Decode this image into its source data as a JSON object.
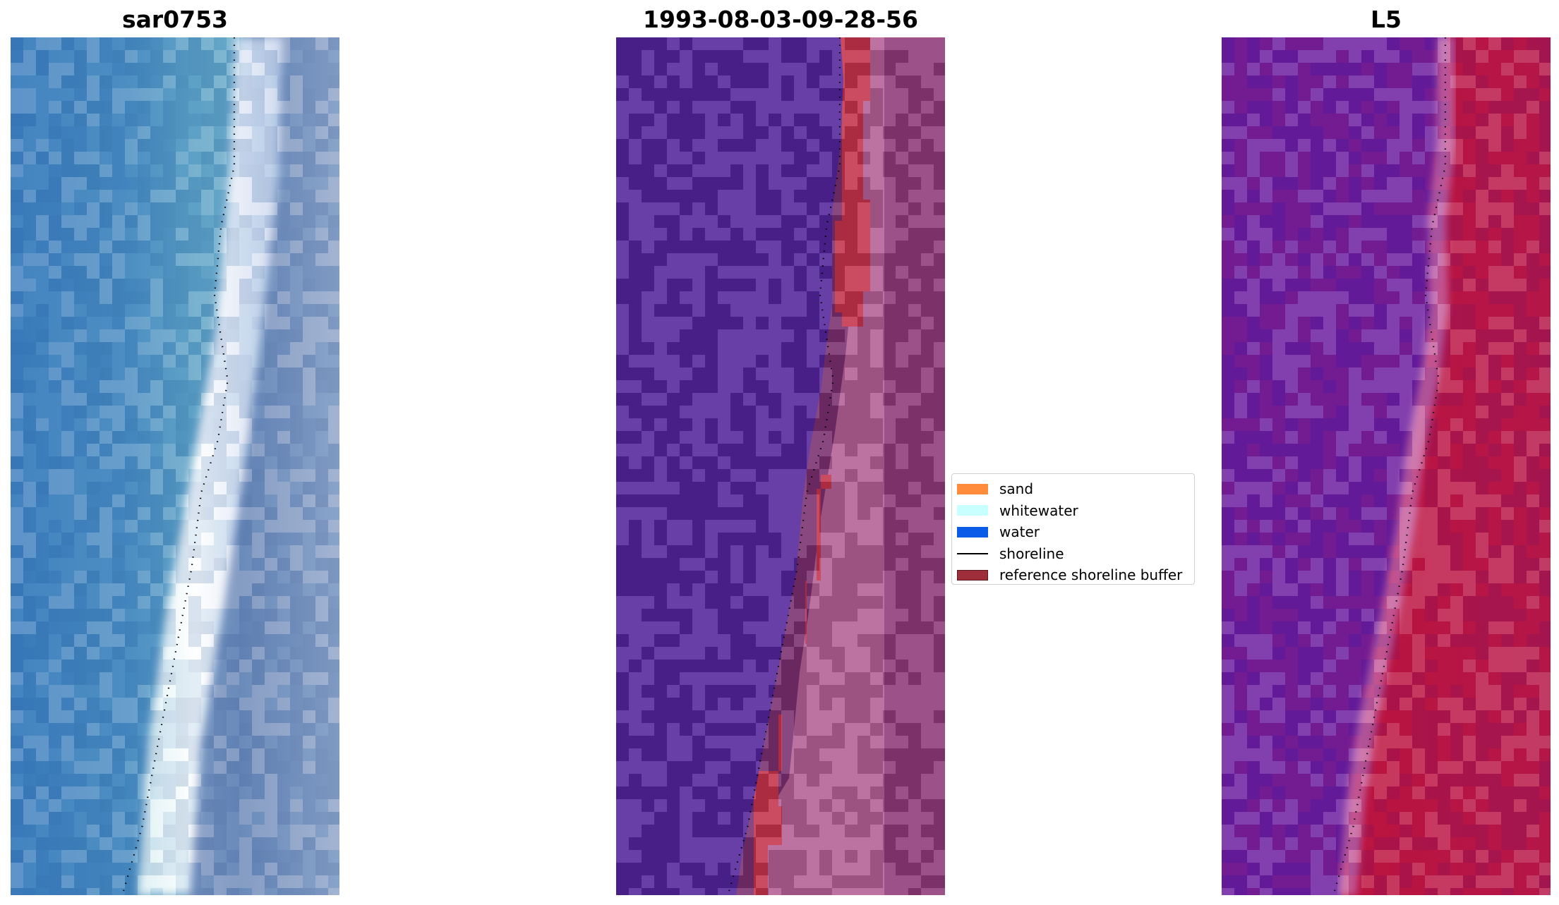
{
  "panels": [
    {
      "id": "rgb",
      "title": "sar0753"
    },
    {
      "id": "classified",
      "title": "1993-08-03-09-28-56"
    },
    {
      "id": "mndwi",
      "title": "L5"
    }
  ],
  "legend": {
    "items": [
      {
        "label": "sand",
        "type": "patch",
        "color": "#ff8c3a"
      },
      {
        "label": "whitewater",
        "type": "patch",
        "color": "#c8ffff"
      },
      {
        "label": "water",
        "type": "patch",
        "color": "#0a5be8"
      },
      {
        "label": "shoreline",
        "type": "line",
        "color": "#000000"
      },
      {
        "label": "reference shoreline buffer",
        "type": "patch",
        "color": "#9e2f3a",
        "edge": "#5a1a20"
      }
    ]
  },
  "colors": {
    "water_class": "#53249a",
    "buffer_red": "#c4334a",
    "sand_buffer": "#b35f95",
    "land_dark": "#7a2e6e",
    "land_mid": "#8e3a78",
    "sea_blue": "#3d7fbe",
    "surf_white": "#f2f6fb",
    "index_purple": "#6b1ea0",
    "index_red": "#c0143f"
  },
  "shoreline": {
    "style": "dotted",
    "color": "#000000",
    "points_normalized": [
      [
        0.68,
        0.0
      ],
      [
        0.68,
        0.15
      ],
      [
        0.64,
        0.22
      ],
      [
        0.62,
        0.3
      ],
      [
        0.66,
        0.4
      ],
      [
        0.63,
        0.47
      ],
      [
        0.58,
        0.53
      ],
      [
        0.55,
        0.62
      ],
      [
        0.5,
        0.72
      ],
      [
        0.45,
        0.82
      ],
      [
        0.4,
        0.92
      ],
      [
        0.34,
        1.0
      ]
    ]
  }
}
